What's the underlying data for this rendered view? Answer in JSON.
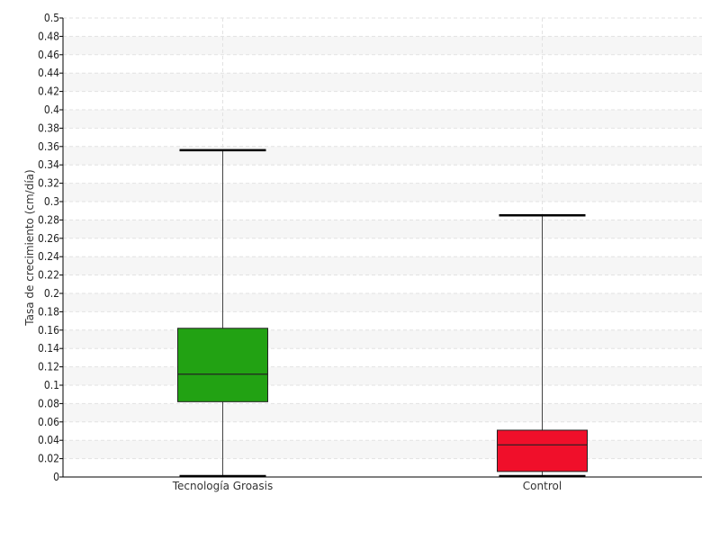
{
  "chart_data": {
    "type": "boxplot",
    "title": "",
    "xlabel": "",
    "ylabel": "Tasa de crecimiento (cm/día)",
    "ylim": [
      0,
      0.5
    ],
    "ytick_step": 0.02,
    "categories": [
      "Tecnología Groasis",
      "Control"
    ],
    "boxes": [
      {
        "category": "Tecnología Groasis",
        "min": 0.0,
        "q1": 0.082,
        "median": 0.112,
        "q3": 0.162,
        "max": 0.356,
        "color": "#22a213"
      },
      {
        "category": "Control",
        "min": 0.0,
        "q1": 0.006,
        "median": 0.035,
        "q3": 0.051,
        "max": 0.285,
        "color": "#f00f2a"
      }
    ],
    "grid": true,
    "legend": "none"
  }
}
